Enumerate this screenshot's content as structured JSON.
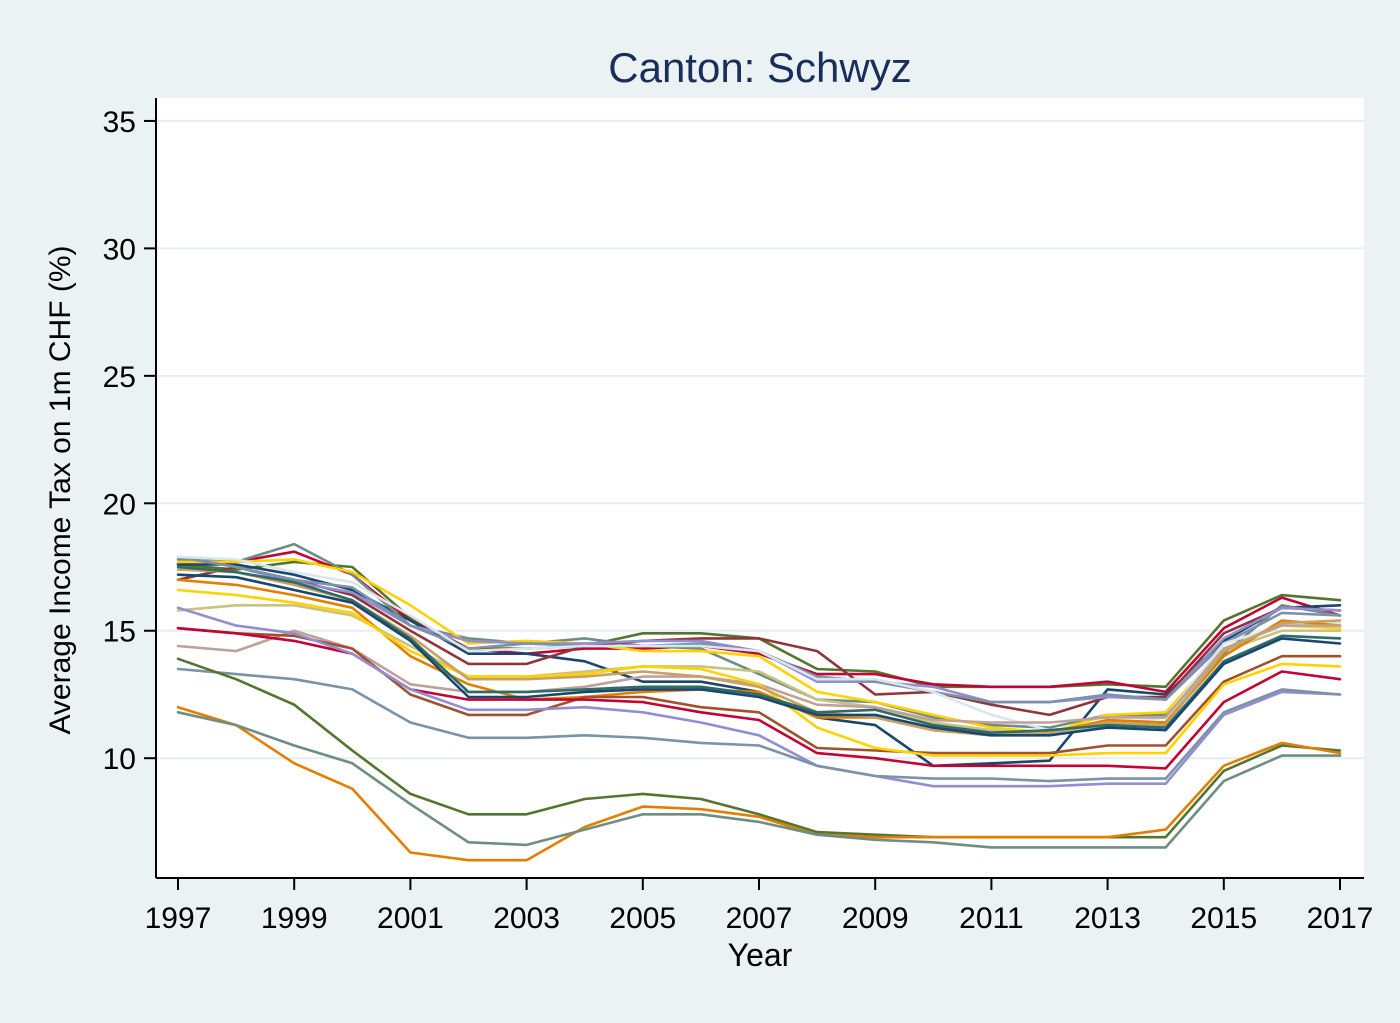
{
  "chart_data": {
    "type": "line",
    "title": "Canton: Schwyz",
    "xlabel": "Year",
    "ylabel": "Average Income Tax on 1m CHF (%)",
    "xlim": [
      1997,
      2017
    ],
    "ylim": [
      5.3,
      35.9
    ],
    "x_ticks": [
      1997,
      1999,
      2001,
      2003,
      2005,
      2007,
      2009,
      2011,
      2013,
      2015,
      2017
    ],
    "y_ticks": [
      10,
      15,
      20,
      25,
      30,
      35
    ],
    "grid": "horizontal",
    "legend": "none",
    "colors": [
      "#1a476f",
      "#90353b",
      "#55752f",
      "#e37e00",
      "#6e8e84",
      "#c10534",
      "#938dd2",
      "#cac27e",
      "#a0522d",
      "#7b92a8",
      "#2d6d66",
      "#9c8847",
      "#bfa19c",
      "#ffd200",
      "#d9e6eb",
      "#8b3a3a",
      "#4f7942",
      "#b03a2e",
      "#556b8a",
      "#c8a165"
    ],
    "x": [
      1997,
      1998,
      1999,
      2000,
      2001,
      2002,
      2003,
      2004,
      2005,
      2006,
      2007,
      2008,
      2009,
      2010,
      2011,
      2012,
      2013,
      2014,
      2015,
      2016,
      2017
    ],
    "series": [
      {
        "color": "#55752f",
        "values": [
          17.6,
          17.4,
          17.7,
          17.5,
          15.5,
          14.3,
          14.3,
          14.4,
          14.9,
          14.9,
          14.7,
          13.5,
          13.4,
          12.8,
          12.8,
          12.8,
          12.9,
          12.8,
          15.4,
          16.4,
          16.2
        ]
      },
      {
        "color": "#c10534",
        "values": [
          17.6,
          17.7,
          18.1,
          17.2,
          15.4,
          14.3,
          14.1,
          14.3,
          14.3,
          14.4,
          14.1,
          13.3,
          13.3,
          12.9,
          12.8,
          12.8,
          13.0,
          12.6,
          15.1,
          16.3,
          15.6
        ]
      },
      {
        "color": "#1a476f",
        "values": [
          17.6,
          17.6,
          17.2,
          16.6,
          15.4,
          14.1,
          14.1,
          13.8,
          13.0,
          13.0,
          12.6,
          11.6,
          11.3,
          9.7,
          9.8,
          9.9,
          12.7,
          12.5,
          14.6,
          15.9,
          16.0
        ]
      },
      {
        "color": "#6e8e84",
        "values": [
          17.8,
          17.7,
          18.4,
          17.2,
          15.2,
          14.7,
          14.5,
          14.7,
          14.4,
          14.3,
          13.3,
          12.3,
          12.2,
          11.6,
          11.3,
          11.2,
          11.7,
          11.7,
          14.1,
          16.0,
          15.6
        ]
      },
      {
        "color": "#ffd200",
        "values": [
          17.7,
          17.7,
          17.8,
          17.3,
          16.0,
          14.5,
          14.6,
          14.5,
          14.2,
          14.2,
          14.0,
          12.6,
          12.2,
          11.7,
          11.2,
          11.0,
          11.7,
          11.8,
          14.3,
          15.2,
          15.1
        ]
      },
      {
        "color": "#90353b",
        "values": [
          17.0,
          17.5,
          17.0,
          16.4,
          15.0,
          13.7,
          13.7,
          14.4,
          14.6,
          14.7,
          14.7,
          14.2,
          12.5,
          12.6,
          12.1,
          11.7,
          12.4,
          12.4,
          14.9,
          15.9,
          15.8
        ]
      },
      {
        "color": "#938dd2",
        "values": [
          17.9,
          17.5,
          16.9,
          16.5,
          15.2,
          14.6,
          14.5,
          14.5,
          14.6,
          14.6,
          14.2,
          13.0,
          13.0,
          12.8,
          12.2,
          12.2,
          12.4,
          12.3,
          14.7,
          15.9,
          15.8
        ]
      },
      {
        "color": "#7b92a8",
        "values": [
          17.9,
          17.5,
          17.0,
          16.7,
          15.2,
          14.3,
          14.5,
          14.4,
          14.4,
          14.5,
          14.2,
          13.2,
          13.0,
          12.6,
          12.2,
          12.2,
          12.5,
          12.3,
          14.5,
          15.7,
          15.6
        ]
      },
      {
        "color": "#d9e6eb",
        "values": [
          17.9,
          17.8,
          17.3,
          16.9,
          15.6,
          14.2,
          14.3,
          14.4,
          14.4,
          14.4,
          14.2,
          13.1,
          13.1,
          12.6,
          11.7,
          11.1,
          11.3,
          11.6,
          14.5,
          15.2,
          15.3
        ]
      },
      {
        "color": "#cac27e",
        "values": [
          15.8,
          16.0,
          16.0,
          15.6,
          14.4,
          13.2,
          13.2,
          13.4,
          13.6,
          13.6,
          13.4,
          12.3,
          12.0,
          11.4,
          11.1,
          10.9,
          11.3,
          11.4,
          14.2,
          15.0,
          15.0
        ]
      },
      {
        "color": "#e37e00",
        "values": [
          17.0,
          16.8,
          16.4,
          15.9,
          14.0,
          12.9,
          12.3,
          12.4,
          12.6,
          12.7,
          12.6,
          11.6,
          11.6,
          11.1,
          10.9,
          11.0,
          11.5,
          11.4,
          14.0,
          15.4,
          15.2
        ]
      },
      {
        "color": "#bfa19c",
        "values": [
          14.4,
          14.2,
          15.0,
          14.3,
          12.9,
          12.6,
          12.6,
          12.8,
          13.2,
          13.2,
          12.9,
          12.1,
          12.0,
          11.5,
          11.4,
          11.4,
          11.6,
          11.6,
          14.3,
          15.2,
          15.2
        ]
      },
      {
        "color": "#a0522d",
        "values": [
          15.1,
          14.9,
          14.8,
          14.3,
          12.5,
          11.7,
          11.7,
          12.4,
          12.4,
          12.0,
          11.8,
          10.4,
          10.3,
          10.2,
          10.2,
          10.2,
          10.5,
          10.5,
          13.0,
          14.0,
          14.0
        ]
      },
      {
        "color": "#c10534",
        "values": [
          15.1,
          14.9,
          14.6,
          14.1,
          12.7,
          12.3,
          12.3,
          12.3,
          12.2,
          11.8,
          11.5,
          10.2,
          10.0,
          9.7,
          9.7,
          9.7,
          9.7,
          9.6,
          12.2,
          13.4,
          13.1
        ]
      },
      {
        "color": "#938dd2",
        "values": [
          15.9,
          15.2,
          14.9,
          14.1,
          12.7,
          11.9,
          11.9,
          12.0,
          11.8,
          11.4,
          10.9,
          9.7,
          9.3,
          8.9,
          8.9,
          8.9,
          9.0,
          9.0,
          11.7,
          12.6,
          12.5
        ]
      },
      {
        "color": "#7b92a8",
        "values": [
          13.5,
          13.3,
          13.1,
          12.7,
          11.4,
          10.8,
          10.8,
          10.9,
          10.8,
          10.6,
          10.5,
          9.7,
          9.3,
          9.2,
          9.2,
          9.1,
          9.2,
          9.2,
          11.8,
          12.7,
          12.5
        ]
      },
      {
        "color": "#ffd200",
        "values": [
          16.6,
          16.4,
          16.1,
          15.7,
          14.2,
          13.2,
          13.2,
          13.3,
          13.6,
          13.5,
          12.9,
          11.2,
          10.4,
          10.1,
          10.1,
          10.1,
          10.2,
          10.2,
          12.9,
          13.7,
          13.6
        ]
      },
      {
        "color": "#c8a165",
        "values": [
          17.4,
          17.3,
          16.8,
          16.2,
          14.8,
          13.1,
          13.1,
          13.2,
          13.4,
          13.2,
          12.8,
          11.8,
          11.6,
          11.1,
          10.9,
          11.0,
          11.4,
          11.3,
          14.2,
          15.3,
          15.4
        ]
      },
      {
        "color": "#2d6d66",
        "values": [
          17.5,
          17.3,
          16.9,
          16.2,
          14.7,
          12.6,
          12.6,
          12.7,
          12.8,
          12.8,
          12.5,
          11.8,
          11.9,
          11.3,
          11.0,
          11.1,
          11.3,
          11.2,
          13.8,
          14.8,
          14.7
        ]
      },
      {
        "color": "#1a476f",
        "values": [
          17.2,
          17.1,
          16.6,
          16.1,
          14.6,
          12.4,
          12.4,
          12.6,
          12.7,
          12.7,
          12.4,
          11.7,
          11.7,
          11.2,
          10.9,
          10.9,
          11.2,
          11.1,
          13.7,
          14.7,
          14.5
        ]
      },
      {
        "color": "#55752f",
        "values": [
          13.9,
          13.1,
          12.1,
          10.3,
          8.6,
          7.8,
          7.8,
          8.4,
          8.6,
          8.4,
          7.8,
          7.1,
          7.0,
          6.9,
          6.9,
          6.9,
          6.9,
          6.9,
          9.5,
          10.5,
          10.3
        ]
      },
      {
        "color": "#e37e00",
        "values": [
          12.0,
          11.3,
          9.8,
          8.8,
          6.3,
          6.0,
          6.0,
          7.3,
          8.1,
          8.0,
          7.7,
          7.0,
          6.9,
          6.9,
          6.9,
          6.9,
          6.9,
          7.2,
          9.7,
          10.6,
          10.2
        ]
      },
      {
        "color": "#6e8e84",
        "values": [
          11.8,
          11.3,
          10.5,
          9.8,
          8.2,
          6.7,
          6.6,
          7.2,
          7.8,
          7.8,
          7.5,
          7.0,
          6.8,
          6.7,
          6.5,
          6.5,
          6.5,
          6.5,
          9.1,
          10.1,
          10.1
        ]
      }
    ]
  }
}
